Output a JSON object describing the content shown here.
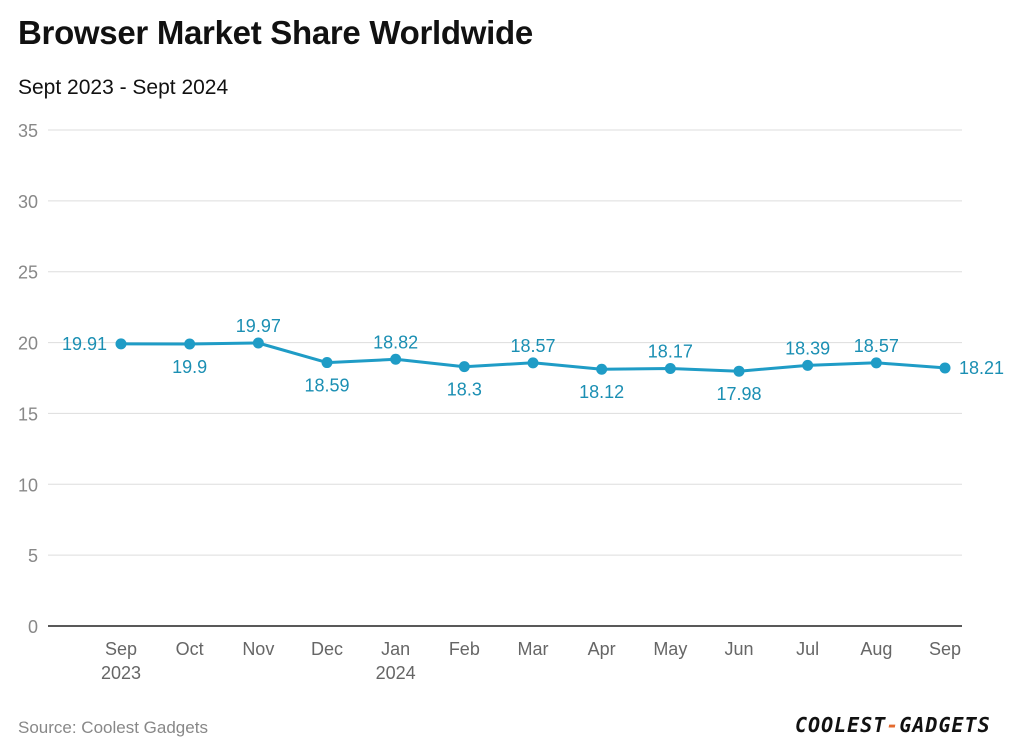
{
  "header": {
    "title": "Browser Market Share Worldwide",
    "subtitle": "Sept 2023 - Sept 2024"
  },
  "footer": {
    "source": "Source: Coolest Gadgets",
    "logo_left": "COOLEST",
    "logo_dash": "-",
    "logo_right": "GADGETS"
  },
  "colors": {
    "line": "#1f9cc6",
    "label": "#1b8fb3",
    "grid": "#dddddd",
    "axis": "#222222"
  },
  "chart_data": {
    "type": "line",
    "title": "Browser Market Share Worldwide",
    "subtitle": "Sept 2023 - Sept 2024",
    "xlabel": "",
    "ylabel": "",
    "ylim": [
      0,
      35
    ],
    "yticks": [
      0,
      5,
      10,
      15,
      20,
      25,
      30,
      35
    ],
    "grid": true,
    "categories": [
      [
        "Sep",
        "2023"
      ],
      [
        "Oct"
      ],
      [
        "Nov"
      ],
      [
        "Dec"
      ],
      [
        "Jan",
        "2024"
      ],
      [
        "Feb"
      ],
      [
        "Mar"
      ],
      [
        "Apr"
      ],
      [
        "May"
      ],
      [
        "Jun"
      ],
      [
        "Jul"
      ],
      [
        "Aug"
      ],
      [
        "Sep"
      ]
    ],
    "values": [
      19.91,
      19.9,
      19.97,
      18.59,
      18.82,
      18.3,
      18.57,
      18.12,
      18.17,
      17.98,
      18.39,
      18.57,
      18.21
    ],
    "labels": [
      "19.91",
      "19.9",
      "19.97",
      "18.59",
      "18.82",
      "18.3",
      "18.57",
      "18.12",
      "18.17",
      "17.98",
      "18.39",
      "18.57",
      "18.21"
    ],
    "label_positions": [
      "left",
      "below",
      "above",
      "below",
      "above",
      "below",
      "above",
      "below",
      "above",
      "below",
      "above",
      "above",
      "right"
    ]
  }
}
